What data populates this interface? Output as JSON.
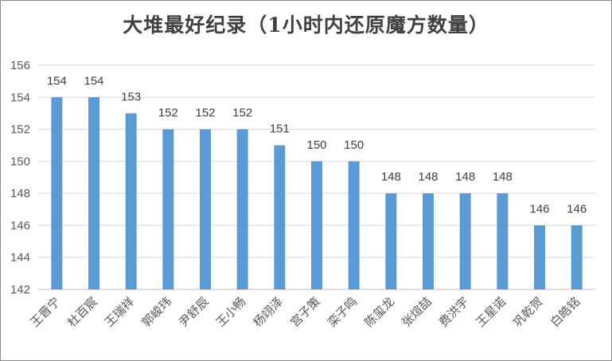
{
  "chart_data": {
    "type": "bar",
    "title": "大堆最好纪录（1小时内还原魔方数量）",
    "categories": [
      "王晋宁",
      "杜百宸",
      "王瑞祥",
      "郭峻玮",
      "尹舒辰",
      "王小畅",
      "杨翊泽",
      "宫子策",
      "栾子鸣",
      "陈玺龙",
      "张煊喆",
      "费洪宇",
      "王星诺",
      "巩乾贺",
      "白皓铭"
    ],
    "values": [
      154,
      154,
      153,
      152,
      152,
      152,
      151,
      150,
      150,
      148,
      148,
      148,
      148,
      146,
      146
    ],
    "yticks": [
      142,
      144,
      146,
      148,
      150,
      152,
      154,
      156
    ],
    "ylim": [
      142,
      156
    ],
    "grid": true,
    "bar_color": "#5b9bd5",
    "data_labels": true
  }
}
